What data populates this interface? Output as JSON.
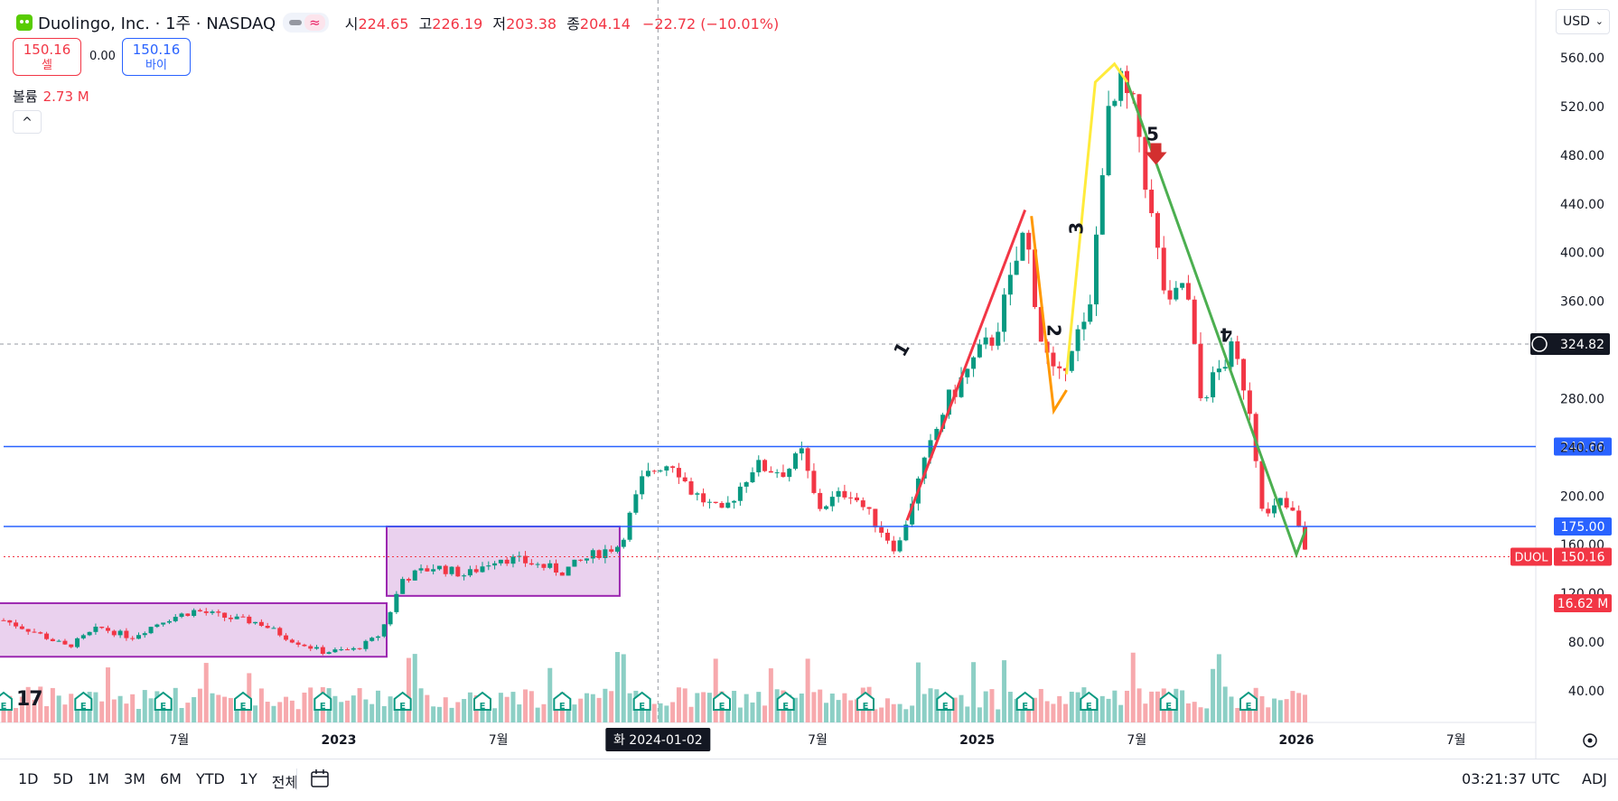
{
  "header": {
    "title": "Duolingo, Inc. · 1주 · NASDAQ",
    "ohlc": [
      {
        "k": "시",
        "v": "224.65"
      },
      {
        "k": "고",
        "v": "226.19"
      },
      {
        "k": "저",
        "v": "203.38"
      },
      {
        "k": "종",
        "v": "204.14"
      }
    ],
    "change": "−22.72 (−10.01%)",
    "sell_price": "150.16",
    "sell_label": "셀",
    "spread": "0.00",
    "buy_price": "150.16",
    "buy_label": "바이",
    "volume_label": "볼륨",
    "volume_value": "2.73 M",
    "currency": "USD"
  },
  "chart_data": {
    "type": "candlestick",
    "symbol": "DUOL",
    "last_price": "150.16",
    "volume_tag": "16.62 M",
    "crosshair_price": "324.82",
    "crosshair_date": "화 2024-01-02",
    "y_ticks": [
      "560.00",
      "520.00",
      "480.00",
      "440.00",
      "400.00",
      "360.00",
      "320.00",
      "280.00",
      "240.00",
      "200.00",
      "160.00",
      "120.00",
      "80.00",
      "40.00"
    ],
    "x_ticks": [
      {
        "label": "7월",
        "t": 2022.5,
        "bold": false
      },
      {
        "label": "2023",
        "t": 2023.0,
        "bold": true
      },
      {
        "label": "7월",
        "t": 2023.5,
        "bold": false
      },
      {
        "label": "7월",
        "t": 2024.5,
        "bold": false
      },
      {
        "label": "2025",
        "t": 2025.0,
        "bold": true
      },
      {
        "label": "7월",
        "t": 2025.5,
        "bold": false
      },
      {
        "label": "2026",
        "t": 2026.0,
        "bold": true
      },
      {
        "label": "7월",
        "t": 2026.5,
        "bold": false
      }
    ],
    "horizontal_lines": [
      {
        "price": 240.66,
        "label": "240.66"
      },
      {
        "price": 175.0,
        "label": "175.00"
      }
    ],
    "boxes": [
      {
        "t0": 2021.9,
        "t1": 2023.15,
        "p0": 68,
        "p1": 112
      },
      {
        "t0": 2023.15,
        "t1": 2023.88,
        "p0": 118,
        "p1": 175
      }
    ],
    "price_path": [
      [
        2021.95,
        98
      ],
      [
        2022.05,
        88
      ],
      [
        2022.15,
        76
      ],
      [
        2022.25,
        92
      ],
      [
        2022.35,
        84
      ],
      [
        2022.45,
        98
      ],
      [
        2022.55,
        106
      ],
      [
        2022.65,
        100
      ],
      [
        2022.75,
        96
      ],
      [
        2022.85,
        82
      ],
      [
        2022.95,
        72
      ],
      [
        2023.05,
        74
      ],
      [
        2023.12,
        84
      ],
      [
        2023.15,
        98
      ],
      [
        2023.2,
        132
      ],
      [
        2023.3,
        142
      ],
      [
        2023.4,
        135
      ],
      [
        2023.5,
        150
      ],
      [
        2023.6,
        145
      ],
      [
        2023.7,
        138
      ],
      [
        2023.8,
        152
      ],
      [
        2023.88,
        160
      ],
      [
        2023.95,
        212
      ],
      [
        2024.0,
        225
      ],
      [
        2024.05,
        228
      ],
      [
        2024.1,
        205
      ],
      [
        2024.2,
        185
      ],
      [
        2024.3,
        225
      ],
      [
        2024.4,
        220
      ],
      [
        2024.45,
        235
      ],
      [
        2024.5,
        190
      ],
      [
        2024.6,
        205
      ],
      [
        2024.7,
        172
      ],
      [
        2024.75,
        155
      ],
      [
        2024.8,
        200
      ],
      [
        2024.9,
        275
      ],
      [
        2025.0,
        315
      ],
      [
        2025.05,
        330
      ],
      [
        2025.1,
        370
      ],
      [
        2025.15,
        420
      ],
      [
        2025.2,
        330
      ],
      [
        2025.25,
        290
      ],
      [
        2025.3,
        330
      ],
      [
        2025.35,
        340
      ],
      [
        2025.4,
        500
      ],
      [
        2025.45,
        535
      ],
      [
        2025.5,
        510
      ],
      [
        2025.55,
        420
      ],
      [
        2025.6,
        350
      ],
      [
        2025.65,
        380
      ],
      [
        2025.7,
        280
      ],
      [
        2025.8,
        320
      ],
      [
        2025.85,
        280
      ],
      [
        2025.9,
        180
      ],
      [
        2025.95,
        195
      ],
      [
        2026.0,
        182
      ],
      [
        2026.03,
        150
      ]
    ],
    "annotations": [
      {
        "label": "1",
        "t": 2024.78,
        "price": 318,
        "rot": -60
      },
      {
        "label": "2",
        "t": 2025.22,
        "price": 336,
        "rot": 90
      },
      {
        "label": "3",
        "t": 2025.33,
        "price": 420,
        "rot": -90
      },
      {
        "label": "4",
        "t": 2025.78,
        "price": 338,
        "rot": 180
      },
      {
        "label": "5",
        "t": 2025.55,
        "price": 492,
        "rot": 0
      }
    ],
    "earnings_markers_t": [
      2021.95,
      2022.2,
      2022.45,
      2022.7,
      2022.95,
      2023.2,
      2023.45,
      2023.7,
      2023.95,
      2024.2,
      2024.4,
      2024.65,
      2024.9,
      2025.15,
      2025.35,
      2025.6,
      2025.85
    ]
  },
  "footer": {
    "ranges": [
      "1D",
      "5D",
      "1M",
      "3M",
      "6M",
      "YTD",
      "1Y",
      "전체"
    ],
    "clock": "03:21:37 UTC",
    "adj": "ADJ",
    "logo": "17"
  },
  "colors": {
    "up": "#089981",
    "down": "#f23645",
    "line": "#2962ff",
    "box_fill": "#e1bee7",
    "box_stroke": "#9c27b0",
    "up_vol": "#8ccfc5",
    "down_vol": "#f7a9ad"
  }
}
